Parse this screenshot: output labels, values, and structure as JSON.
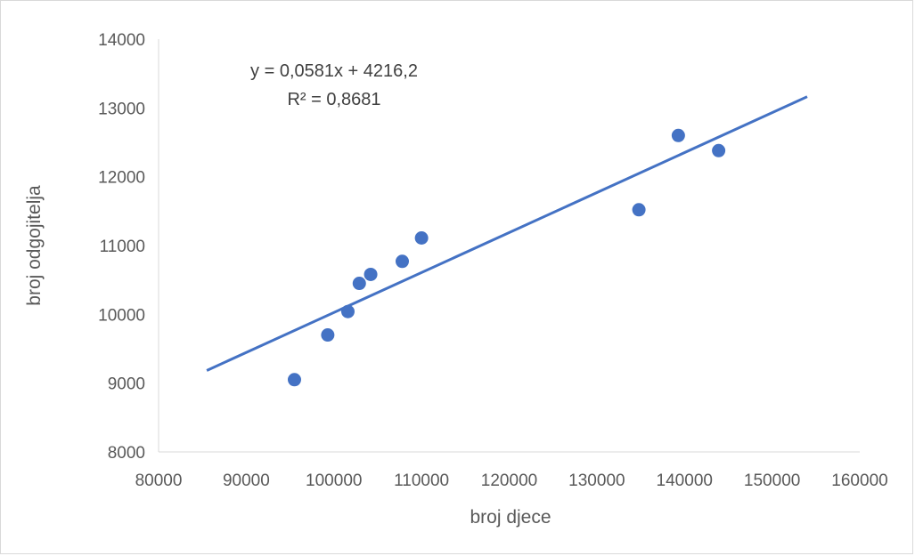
{
  "chart_data": {
    "type": "scatter",
    "title": "",
    "xlabel": "broj djece",
    "ylabel": "broj odgojitelja",
    "xlim": [
      80000,
      160000
    ],
    "ylim": [
      8000,
      14000
    ],
    "x_ticks": [
      80000,
      90000,
      100000,
      110000,
      120000,
      130000,
      140000,
      150000,
      160000
    ],
    "y_ticks": [
      8000,
      9000,
      10000,
      11000,
      12000,
      13000,
      14000
    ],
    "grid": false,
    "legend": "none",
    "series": [
      {
        "x": [
          95500,
          99300,
          101600,
          102900,
          104200,
          107800,
          110000,
          134800,
          139300,
          143900
        ],
        "y": [
          9050,
          9700,
          10040,
          10450,
          10580,
          10770,
          11110,
          11520,
          12600,
          12380
        ],
        "color": "#4472C4"
      }
    ],
    "trendline": {
      "type": "linear",
      "slope": 0.0581,
      "intercept": 4216.2,
      "x_range": [
        85500,
        154000
      ],
      "color": "#4472C4",
      "equation_label": "y = 0,0581x + 4216,2",
      "r2_label": "R² = 0,8681"
    }
  }
}
